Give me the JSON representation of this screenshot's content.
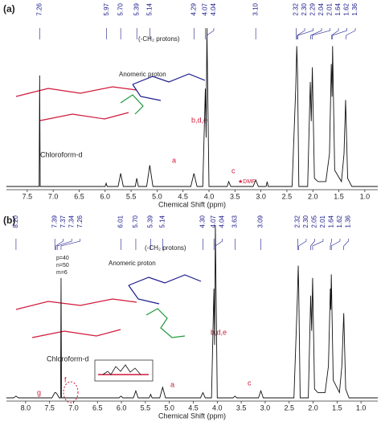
{
  "chart_data": [
    {
      "type": "line",
      "panel_label": "(a)",
      "xlabel": "Chemical Shift (ppm)",
      "color": "#111111",
      "xlim": [
        7.9,
        0.75
      ],
      "xticks": [
        7.5,
        {
          "value": 7.0,
          "label": "7.0"
        },
        6.5,
        {
          "value": 6.0,
          "label": "6.0"
        },
        5.5,
        {
          "value": 5.0,
          "label": "5.0"
        },
        4.5,
        {
          "value": 4.0,
          "label": "4.0"
        },
        3.5,
        {
          "value": 3.0,
          "label": "3.0"
        },
        2.5,
        {
          "value": 2.0,
          "label": "2.0"
        },
        1.5,
        {
          "value": 1.0,
          "label": "1.0"
        }
      ],
      "peak_labels": [
        7.26,
        5.97,
        {
          "value": 5.7,
          "label": "5.70"
        },
        5.39,
        5.14,
        4.29,
        4.07,
        4.04,
        {
          "value": 3.1,
          "label": "3.10"
        },
        2.32,
        {
          "value": 2.3,
          "label": "2.30"
        },
        2.29,
        2.04,
        2.01,
        1.64,
        1.62,
        1.36
      ],
      "x": [
        7.9,
        7.3,
        7.27,
        7.26,
        7.25,
        6.0,
        5.98,
        5.96,
        5.75,
        5.7,
        5.65,
        5.42,
        5.39,
        5.36,
        5.2,
        5.14,
        5.08,
        4.35,
        4.29,
        4.23,
        4.12,
        4.07,
        4.055,
        4.04,
        4.0,
        3.65,
        3.62,
        3.58,
        3.15,
        3.1,
        3.05,
        2.9,
        2.88,
        2.86,
        2.4,
        2.33,
        2.31,
        2.295,
        2.27,
        2.1,
        2.05,
        2.03,
        2.01,
        1.97,
        1.9,
        1.75,
        1.68,
        1.645,
        1.63,
        1.62,
        1.58,
        1.45,
        1.4,
        1.37,
        1.33,
        1.25,
        0.75
      ],
      "values": [
        0,
        0,
        0,
        68,
        0,
        0,
        2,
        0,
        0,
        8,
        0,
        0,
        5,
        0,
        0,
        13,
        0,
        0,
        8,
        0,
        0,
        60,
        30,
        97,
        0,
        0,
        3,
        0,
        0,
        4,
        0,
        0,
        3,
        0,
        0,
        60,
        86,
        70,
        0,
        0,
        64,
        40,
        73,
        5,
        3,
        3,
        20,
        75,
        55,
        86,
        10,
        3,
        20,
        53,
        5,
        0,
        0
      ],
      "annotations": [
        "Chloroform-d",
        "b,d,e",
        "a",
        "c",
        "★DMF",
        "Anomeric proton",
        "(-CH₂ protons)"
      ]
    },
    {
      "type": "line",
      "panel_label": "(b)",
      "xlabel": "Chemical Shift (ppm)",
      "color": "#111111",
      "xlim": [
        8.4,
        0.65
      ],
      "xticks": [
        {
          "value": 8.0,
          "label": "8.0"
        },
        7.5,
        {
          "value": 7.0,
          "label": "7.0"
        },
        6.5,
        {
          "value": 6.0,
          "label": "6.0"
        },
        5.5,
        {
          "value": 5.0,
          "label": "5.0"
        },
        4.5,
        {
          "value": 4.0,
          "label": "4.0"
        },
        3.5,
        {
          "value": 3.0,
          "label": "3.0"
        },
        2.5,
        {
          "value": 2.0,
          "label": "2.0"
        },
        1.5,
        {
          "value": 1.0,
          "label": "1.0"
        }
      ],
      "peak_labels": [
        {
          "value": 8.2,
          "label": "8.20"
        },
        7.39,
        7.37,
        7.34,
        7.26,
        6.01,
        {
          "value": 5.7,
          "label": "5.70"
        },
        5.39,
        5.14,
        {
          "value": 4.3,
          "label": "4.30"
        },
        4.07,
        4.04,
        3.63,
        3.09,
        2.32,
        {
          "value": 2.3,
          "label": "2.30"
        },
        2.05,
        2.01,
        1.64,
        1.62,
        1.36
      ],
      "x": [
        8.4,
        8.25,
        8.2,
        8.15,
        7.45,
        7.39,
        7.37,
        7.34,
        7.3,
        7.27,
        7.26,
        7.25,
        6.05,
        6.01,
        5.97,
        5.75,
        5.7,
        5.65,
        5.42,
        5.39,
        5.36,
        5.2,
        5.14,
        5.08,
        4.35,
        4.3,
        4.25,
        4.12,
        4.07,
        4.055,
        4.04,
        4.0,
        3.67,
        3.63,
        3.59,
        3.14,
        3.09,
        3.04,
        2.4,
        2.33,
        2.31,
        2.3,
        2.27,
        2.1,
        2.05,
        2.03,
        2.01,
        1.97,
        1.9,
        1.75,
        1.68,
        1.64,
        1.63,
        1.62,
        1.58,
        1.45,
        1.4,
        1.36,
        1.32,
        1.25,
        0.65
      ],
      "values": [
        0,
        0,
        1,
        0,
        0,
        3,
        3,
        2,
        0,
        0,
        68,
        0,
        0,
        1,
        0,
        0,
        4,
        0,
        0,
        2,
        0,
        0,
        6,
        0,
        0,
        3,
        0,
        0,
        62,
        30,
        98,
        0,
        0,
        1,
        0,
        0,
        4,
        0,
        0,
        55,
        75,
        62,
        0,
        0,
        58,
        38,
        68,
        5,
        3,
        3,
        18,
        62,
        50,
        70,
        10,
        3,
        18,
        48,
        5,
        0,
        0
      ],
      "annotations": [
        "Chloroform-d",
        "b,d,e",
        "a",
        "c",
        "f",
        "g",
        "Anomeric proton",
        "(-CH₂ protons)",
        "p=40",
        "n=50",
        "m=6"
      ]
    }
  ]
}
